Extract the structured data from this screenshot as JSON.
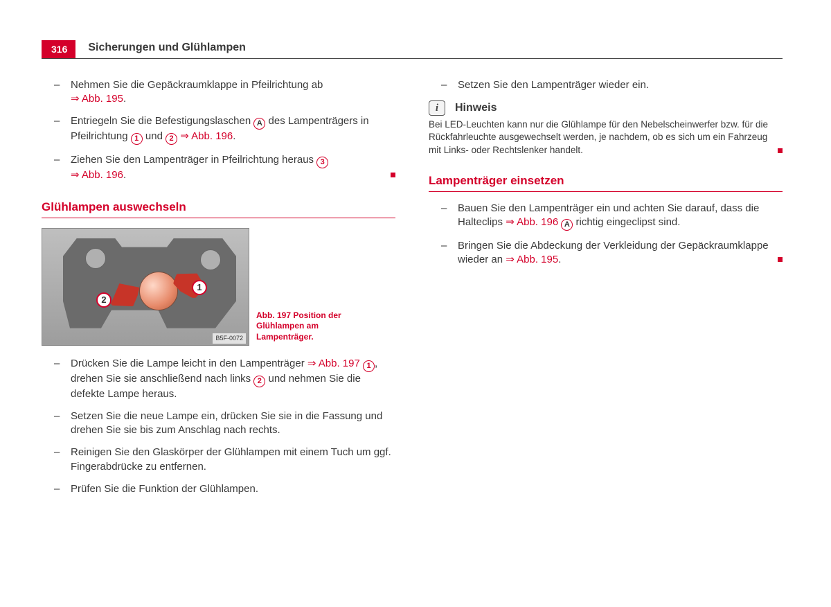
{
  "page_number": "316",
  "section": "Sicherungen und Glühlampen",
  "accent_color": "#d4002a",
  "left": {
    "steps_top": [
      {
        "pre": "Nehmen Sie die Gepäckraumklappe in Pfeilrichtung ab ",
        "ref": "⇒ Abb. 195",
        "post": "."
      },
      {
        "pre": "Entriegeln Sie die Befestigungslaschen ",
        "markA": "A",
        "mid1": " des Lampenträgers in Pfeilrichtung ",
        "c1": "1",
        "mid2": " und ",
        "c2": "2",
        "ref": " ⇒ Abb. 196",
        "post": "."
      },
      {
        "pre": "Ziehen Sie den Lampenträger in Pfeilrichtung heraus ",
        "c1": "3",
        "ref": " ⇒ Abb. 196",
        "post": "."
      }
    ],
    "subheading1": "Glühlampen auswechseln",
    "figure": {
      "label": "B5F-0072",
      "caption": "Abb. 197   Position der Glühlampen am Lampen­träger.",
      "mark1": "1",
      "mark2": "2"
    },
    "steps_bottom": [
      {
        "pre": "Drücken Sie die Lampe leicht in den Lampenträger ",
        "ref1": "⇒ Abb. 197",
        "sp1": " ",
        "c1": "1",
        "mid": ", drehen Sie sie anschließend nach links ",
        "c2": "2",
        "post": " und nehmen Sie die defekte Lampe heraus."
      },
      {
        "pre": "Setzen Sie die neue Lampe ein, drücken Sie sie in die Fassung und drehen Sie sie bis zum Anschlag nach rechts."
      },
      {
        "pre": "Reinigen Sie den Glaskörper der Glühlampen mit einem Tuch um ggf. Fingerabdrücke zu entfernen."
      },
      {
        "pre": "Prüfen Sie die Funktion der Glühlampen."
      }
    ]
  },
  "right": {
    "step_top": "Setzen Sie den Lampenträger wieder ein.",
    "hinweis_label": "Hinweis",
    "hinweis_body": "Bei LED-Leuchten kann nur die Glühlampe für den Nebelscheinwerfer bzw. für die Rückfahrleuchte ausgewechselt werden, je nachdem, ob es sich um ein Fahrzeug mit Links- oder Rechtslenker handelt.",
    "subheading2": "Lampenträger einsetzen",
    "steps": [
      {
        "pre": "Bauen Sie den Lampenträger ein und achten Sie darauf, dass die Halteclips ",
        "ref": "⇒ Abb. 196 ",
        "markA": "A",
        "post": " richtig eingeclipst sind."
      },
      {
        "pre": "Bringen Sie die Abdeckung der Verkleidung der Gepäckraum­klappe wieder an ",
        "ref": "⇒ Abb. 195",
        "post": "."
      }
    ]
  }
}
